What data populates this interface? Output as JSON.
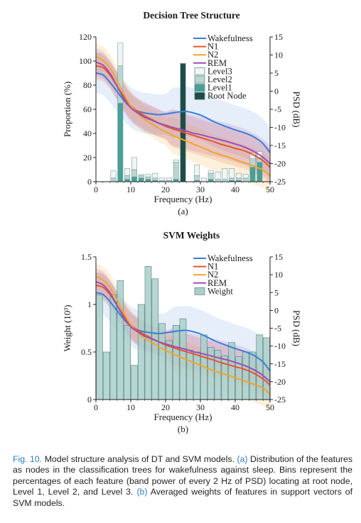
{
  "caption": {
    "prefix": "Fig. 10.",
    "text1": " Model structure analysis of DT and SVM models. ",
    "ref_a": "(a)",
    "text2": " Distribution of the features as nodes in the classification trees for wakefulness against sleep. Bins represent the percentages of each feature (band power of every 2 Hz of PSD) locating at root node, Level 1, Level 2, and Level 3. ",
    "ref_b": "(b)",
    "text3": " Averaged weights of features in support vectors of SVM models."
  },
  "colors": {
    "wakefulness": "#3a7fd0",
    "n1": "#e8542a",
    "n2": "#f2a527",
    "rem": "#9a4fb8",
    "level3": "#eef5f4",
    "level2": "#b9d6d3",
    "level1": "#48a196",
    "root": "#1e4d49",
    "weight": "#a9cfcb"
  },
  "chart_data": [
    {
      "type": "bar",
      "title": "Decision Tree Structure",
      "panel_label": "(a)",
      "xlabel": "Frequency (Hz)",
      "ylabel": "Proportion (%)",
      "y2label": "PSD (dB)",
      "xlim": [
        0,
        50
      ],
      "ylim": [
        0,
        120
      ],
      "y2lim": [
        -25,
        15
      ],
      "xticks": [
        0,
        10,
        20,
        30,
        40,
        50
      ],
      "yticks": [
        0,
        20,
        40,
        60,
        80,
        100,
        120
      ],
      "y2ticks": [
        -25,
        -20,
        -15,
        -10,
        -5,
        0,
        5,
        10,
        15
      ],
      "x": [
        1,
        3,
        5,
        7,
        9,
        11,
        13,
        15,
        17,
        19,
        21,
        23,
        25,
        27,
        29,
        31,
        33,
        35,
        37,
        39,
        41,
        43,
        45,
        47,
        49
      ],
      "stacked_series": [
        {
          "name": "Root Node",
          "values": [
            0,
            0,
            0,
            0,
            0,
            0,
            0,
            0,
            0,
            0,
            0,
            0,
            98,
            0,
            0,
            0,
            0,
            0,
            0,
            0,
            0,
            0,
            0,
            0,
            0
          ]
        },
        {
          "name": "Level1",
          "values": [
            0,
            0,
            0,
            65,
            2,
            4,
            3,
            2,
            1,
            0,
            0,
            2,
            0,
            0,
            1,
            0,
            2,
            0,
            0,
            1,
            1,
            0,
            12,
            16,
            0
          ]
        },
        {
          "name": "Level2",
          "values": [
            0,
            0,
            3,
            31,
            3,
            6,
            2,
            2,
            2,
            1,
            1,
            14,
            0,
            0,
            4,
            0,
            5,
            2,
            2,
            2,
            2,
            3,
            7,
            4,
            0
          ]
        },
        {
          "name": "Level3",
          "values": [
            0,
            0,
            6,
            19,
            6,
            10,
            1,
            2,
            4,
            2,
            2,
            2,
            0,
            0,
            9,
            3,
            2,
            6,
            9,
            8,
            4,
            3,
            5,
            5,
            0
          ]
        }
      ],
      "psd_x": [
        0,
        2,
        4,
        6,
        8,
        10,
        12,
        14,
        16,
        18,
        20,
        22,
        24,
        26,
        28,
        30,
        32,
        34,
        36,
        38,
        40,
        42,
        44,
        46,
        48,
        50
      ],
      "line_series": [
        {
          "name": "Wakefulness",
          "values": [
            5,
            4.5,
            2.5,
            0,
            -2.5,
            -4.5,
            -5.5,
            -6,
            -6.3,
            -6.5,
            -6.3,
            -6,
            -5.7,
            -5.6,
            -6,
            -6.6,
            -7.5,
            -8.5,
            -9.3,
            -10,
            -10.7,
            -11.3,
            -12,
            -13,
            -14.5,
            -17
          ]
        },
        {
          "name": "N1",
          "values": [
            7,
            6.5,
            4.5,
            1.5,
            -1.5,
            -4,
            -5.6,
            -6.8,
            -7.8,
            -8.8,
            -9.7,
            -10.4,
            -11,
            -11.6,
            -12.2,
            -12.8,
            -13.4,
            -14,
            -14.7,
            -15.2,
            -15.8,
            -16.3,
            -17,
            -18,
            -19.2,
            -21
          ]
        },
        {
          "name": "N2",
          "values": [
            9.5,
            8.5,
            6.5,
            3,
            -0.8,
            -4,
            -6.2,
            -7.8,
            -9,
            -10.2,
            -11.2,
            -12.2,
            -13,
            -13.8,
            -14.6,
            -15.4,
            -16.2,
            -17,
            -17.6,
            -18.2,
            -18.9,
            -19.6,
            -20.2,
            -21,
            -21.8,
            -23.5
          ]
        },
        {
          "name": "REM",
          "values": [
            8,
            7.2,
            5,
            1.5,
            -2,
            -4.6,
            -6,
            -7.2,
            -8,
            -8.8,
            -9.4,
            -10,
            -10.5,
            -11,
            -11.6,
            -12,
            -12.5,
            -13,
            -13.5,
            -14,
            -14.6,
            -15.2,
            -16,
            -17,
            -18.3,
            -20
          ]
        }
      ]
    },
    {
      "type": "bar",
      "title": "SVM Weights",
      "panel_label": "(b)",
      "xlabel": "Frequency (Hz)",
      "ylabel": "Weight (10³)",
      "y2label": "PSD (dB)",
      "xlim": [
        0,
        50
      ],
      "ylim": [
        0,
        1.5
      ],
      "y2lim": [
        -25,
        15
      ],
      "xticks": [
        0,
        10,
        20,
        30,
        40,
        50
      ],
      "yticks": [
        0,
        0.5,
        1,
        1.5
      ],
      "ytick_labels": [
        "0",
        "0.5",
        "1",
        "1.5"
      ],
      "y2ticks": [
        -25,
        -20,
        -15,
        -10,
        -5,
        0,
        5,
        10,
        15
      ],
      "x": [
        1,
        3,
        5,
        7,
        9,
        11,
        13,
        15,
        17,
        19,
        21,
        23,
        25,
        27,
        29,
        31,
        33,
        35,
        37,
        39,
        41,
        43,
        45,
        47,
        49
      ],
      "series": [
        {
          "name": "Weight",
          "values": [
            1.1,
            0.5,
            1.1,
            1.25,
            0.78,
            0.36,
            1.0,
            1.4,
            1.27,
            0.8,
            0.62,
            0.78,
            0.85,
            0.52,
            0.5,
            0.68,
            0.55,
            0.52,
            0.46,
            0.6,
            0.45,
            0.5,
            0.5,
            0.68,
            0.65
          ]
        }
      ],
      "psd_x": [
        0,
        2,
        4,
        6,
        8,
        10,
        12,
        14,
        16,
        18,
        20,
        22,
        24,
        26,
        28,
        30,
        32,
        34,
        36,
        38,
        40,
        42,
        44,
        46,
        48,
        50
      ],
      "line_series": [
        {
          "name": "Wakefulness",
          "values": [
            5,
            4.5,
            2.5,
            0,
            -2.5,
            -4.5,
            -5.5,
            -6,
            -6.3,
            -6.5,
            -6.3,
            -6,
            -5.7,
            -5.6,
            -6,
            -6.6,
            -7.5,
            -8.5,
            -9.3,
            -10,
            -10.7,
            -11.3,
            -12,
            -13,
            -14.5,
            -17
          ]
        },
        {
          "name": "N1",
          "values": [
            7,
            6.5,
            4.5,
            1.5,
            -1.5,
            -4,
            -5.6,
            -6.8,
            -7.8,
            -8.8,
            -9.7,
            -10.4,
            -11,
            -11.6,
            -12.2,
            -12.8,
            -13.4,
            -14,
            -14.7,
            -15.2,
            -15.8,
            -16.3,
            -17,
            -18,
            -19.2,
            -21
          ]
        },
        {
          "name": "N2",
          "values": [
            9.5,
            8.5,
            6.5,
            3,
            -0.8,
            -4,
            -6.2,
            -7.8,
            -9,
            -10.2,
            -11.2,
            -12.2,
            -13,
            -13.8,
            -14.6,
            -15.4,
            -16.2,
            -17,
            -17.6,
            -18.2,
            -18.9,
            -19.6,
            -20.2,
            -21,
            -21.8,
            -23.5
          ]
        },
        {
          "name": "REM",
          "values": [
            8,
            7.2,
            5,
            1.5,
            -2,
            -4.6,
            -6,
            -7.2,
            -8,
            -8.8,
            -9.4,
            -10,
            -10.5,
            -11,
            -11.6,
            -12,
            -12.5,
            -13,
            -13.5,
            -14,
            -14.6,
            -15.2,
            -16,
            -17,
            -18.3,
            -20
          ]
        }
      ]
    }
  ]
}
